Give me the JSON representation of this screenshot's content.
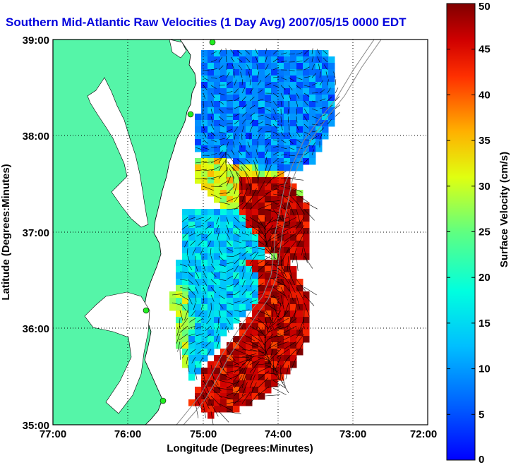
{
  "title": "Southern Mid-Atlantic Raw Velocities (1 Day Avg) 2007/05/15 0000 EDT",
  "map": {
    "x_axis_label": "Longitude (Degrees:Minutes)",
    "y_axis_label": "Latitude (Degrees:Minutes)",
    "x_ticks": [
      "77:00",
      "76:00",
      "75:00",
      "74:00",
      "73:00",
      "72:00"
    ],
    "y_ticks": [
      "39:00",
      "38:00",
      "37:00",
      "36:00",
      "35:00"
    ],
    "lon_range": [
      -77,
      -72
    ],
    "lat_range": [
      35,
      39
    ],
    "land_color": "#55f5a8",
    "station_color": "#22ee22"
  },
  "colorbar": {
    "label": "Surface Velocity (cm/s)",
    "ticks": [
      "0",
      "5",
      "10",
      "15",
      "20",
      "25",
      "30",
      "35",
      "40",
      "45",
      "50"
    ],
    "range": [
      0,
      50
    ]
  }
}
